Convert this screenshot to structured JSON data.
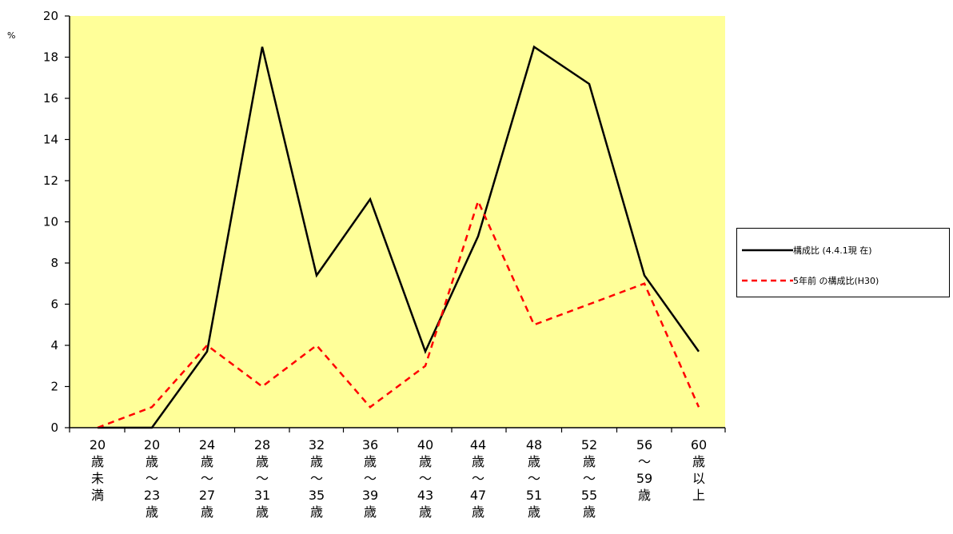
{
  "chart_data": {
    "type": "line",
    "ylabel": "%",
    "ylim": [
      0,
      20
    ],
    "yticks": [
      "0",
      "2",
      "4",
      "6",
      "8",
      "10",
      "12",
      "14",
      "16",
      "18",
      "20"
    ],
    "categories": [
      [
        "20",
        "歳",
        "未",
        "満"
      ],
      [
        "20",
        "歳",
        "～",
        "23",
        "歳"
      ],
      [
        "24",
        "歳",
        "～",
        "27",
        "歳"
      ],
      [
        "28",
        "歳",
        "～",
        "31",
        "歳"
      ],
      [
        "32",
        "歳",
        "～",
        "35",
        "歳"
      ],
      [
        "36",
        "歳",
        "～",
        "39",
        "歳"
      ],
      [
        "40",
        "歳",
        "～",
        "43",
        "歳"
      ],
      [
        "44",
        "歳",
        "～",
        "47",
        "歳"
      ],
      [
        "48",
        "歳",
        "～",
        "51",
        "歳"
      ],
      [
        "52",
        "歳",
        "～",
        "55",
        "歳"
      ],
      [
        "56",
        "～",
        "59",
        "歳"
      ],
      [
        "60",
        "歳",
        "以",
        "上"
      ]
    ],
    "series": [
      {
        "name": "構成比 (4.4.1現 在)",
        "color": "#000000",
        "dash": "solid",
        "values": [
          0.0,
          0.0,
          3.7,
          18.5,
          7.4,
          11.1,
          3.7,
          9.3,
          18.5,
          16.7,
          7.4,
          3.7
        ]
      },
      {
        "name": "5年前 の構成比(H30)",
        "color": "#ff0000",
        "dash": "dashed",
        "values": [
          0.0,
          1.0,
          4.0,
          2.0,
          4.0,
          1.0,
          3.0,
          11.0,
          5.0,
          6.0,
          7.0,
          1.0
        ]
      }
    ],
    "plot_background": "#ffff99",
    "grid": false,
    "legend": "right"
  }
}
